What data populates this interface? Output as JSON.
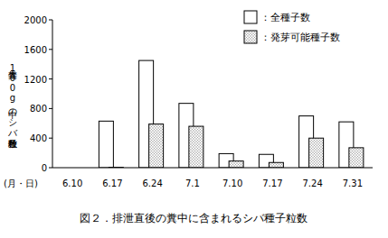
{
  "chart_data": {
    "type": "bar",
    "title": "図２．排泄直後の糞中に含まれるシバ種子粒数",
    "y_label": "牛糞100g中のシバ種子粒数",
    "x_label": "(月・日)",
    "categories": [
      "6.10",
      "6.17",
      "6.24",
      "7.1",
      "7.10",
      "7.17",
      "7.24",
      "7.31"
    ],
    "series": [
      {
        "name": "：全種子数",
        "color": "#ffffff",
        "values": [
          0,
          630,
          1450,
          870,
          190,
          180,
          700,
          620
        ]
      },
      {
        "name": "：発芽可能種子数",
        "color": "#999999",
        "values": [
          0,
          5,
          590,
          560,
          90,
          70,
          400,
          270
        ]
      }
    ],
    "ylim": [
      0,
      2000
    ],
    "yticks": [
      0,
      400,
      800,
      1200,
      1600,
      2000
    ],
    "grid": false,
    "legend": "upper right"
  }
}
